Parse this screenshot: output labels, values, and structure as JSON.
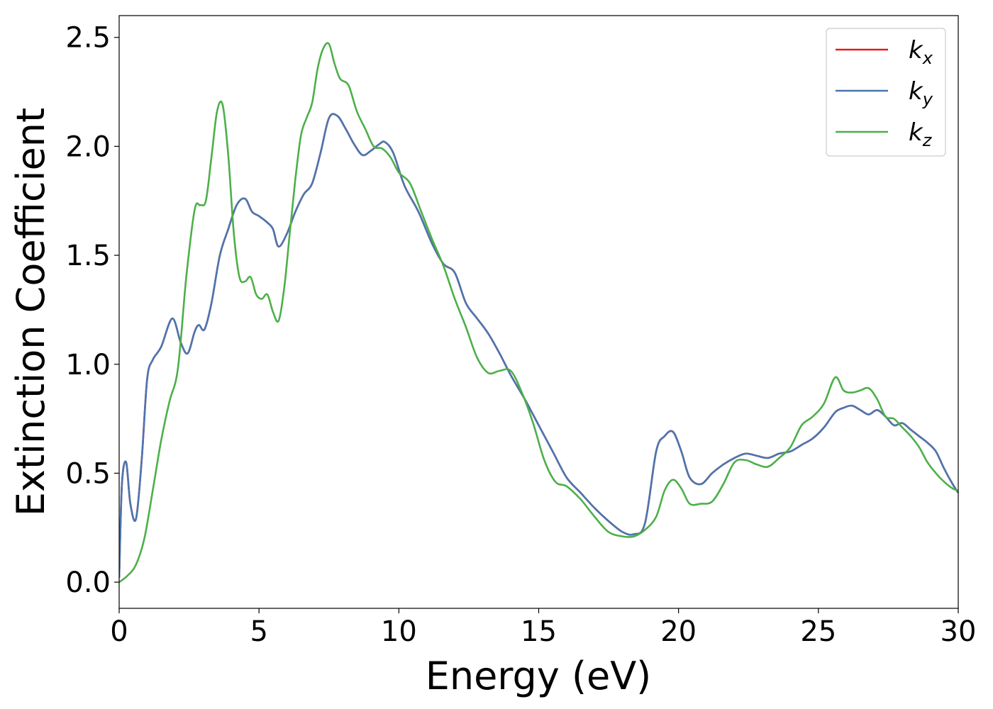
{
  "chart_data": {
    "type": "line",
    "title": "",
    "xlabel": "Energy (eV)",
    "ylabel": "Extinction Coefficient",
    "xlim": [
      0,
      30
    ],
    "ylim": [
      -0.12,
      2.6
    ],
    "xticks": [
      0,
      5,
      10,
      15,
      20,
      25,
      30
    ],
    "xtick_labels": [
      "0",
      "5",
      "10",
      "15",
      "20",
      "25",
      "30"
    ],
    "yticks": [
      0.0,
      0.5,
      1.0,
      1.5,
      2.0,
      2.5
    ],
    "ytick_labels": [
      "0.0",
      "0.5",
      "1.0",
      "1.5",
      "2.0",
      "2.5"
    ],
    "grid": false,
    "legend_position": "top-right",
    "series": [
      {
        "name": "k_x",
        "legend_base": "k",
        "legend_sub": "x",
        "color": "#e41a1c",
        "x": [
          0,
          0.1,
          0.25,
          0.4,
          0.6,
          0.8,
          1.0,
          1.2,
          1.5,
          1.9,
          2.2,
          2.45,
          2.7,
          2.85,
          3.05,
          3.3,
          3.6,
          3.9,
          4.2,
          4.5,
          4.75,
          5.0,
          5.3,
          5.5,
          5.7,
          6.0,
          6.3,
          6.6,
          6.9,
          7.2,
          7.5,
          7.8,
          8.1,
          8.4,
          8.7,
          9.0,
          9.3,
          9.5,
          9.8,
          10.2,
          10.7,
          11.2,
          11.6,
          12.0,
          12.4,
          12.8,
          13.2,
          13.6,
          14.0,
          14.5,
          15.0,
          15.5,
          16.0,
          16.5,
          17.0,
          17.5,
          18.0,
          18.4,
          18.8,
          19.2,
          19.5,
          19.8,
          20.1,
          20.4,
          20.8,
          21.2,
          21.6,
          22.0,
          22.4,
          22.8,
          23.2,
          23.6,
          24.0,
          24.4,
          24.8,
          25.2,
          25.6,
          25.9,
          26.2,
          26.5,
          26.8,
          27.1,
          27.4,
          27.7,
          28.0,
          28.3,
          28.6,
          28.9,
          29.2,
          29.5,
          29.8,
          30.0
        ],
        "y": [
          0.02,
          0.45,
          0.55,
          0.36,
          0.29,
          0.55,
          0.93,
          1.02,
          1.08,
          1.21,
          1.1,
          1.05,
          1.15,
          1.18,
          1.16,
          1.28,
          1.5,
          1.62,
          1.73,
          1.76,
          1.7,
          1.68,
          1.65,
          1.62,
          1.54,
          1.6,
          1.7,
          1.78,
          1.83,
          1.97,
          2.13,
          2.14,
          2.08,
          2.01,
          1.96,
          1.98,
          2.01,
          2.02,
          1.97,
          1.82,
          1.7,
          1.55,
          1.46,
          1.42,
          1.28,
          1.21,
          1.14,
          1.05,
          0.95,
          0.84,
          0.72,
          0.6,
          0.48,
          0.41,
          0.34,
          0.28,
          0.23,
          0.22,
          0.27,
          0.6,
          0.67,
          0.69,
          0.6,
          0.48,
          0.45,
          0.5,
          0.54,
          0.57,
          0.59,
          0.58,
          0.57,
          0.59,
          0.6,
          0.63,
          0.66,
          0.71,
          0.78,
          0.8,
          0.81,
          0.79,
          0.77,
          0.79,
          0.76,
          0.72,
          0.73,
          0.7,
          0.67,
          0.64,
          0.6,
          0.52,
          0.45,
          0.41
        ]
      },
      {
        "name": "k_y",
        "legend_base": "k",
        "legend_sub": "y",
        "color": "#4a76b0",
        "x": [
          0,
          0.1,
          0.25,
          0.4,
          0.6,
          0.8,
          1.0,
          1.2,
          1.5,
          1.9,
          2.2,
          2.45,
          2.7,
          2.85,
          3.05,
          3.3,
          3.6,
          3.9,
          4.2,
          4.5,
          4.75,
          5.0,
          5.3,
          5.5,
          5.7,
          6.0,
          6.3,
          6.6,
          6.9,
          7.2,
          7.5,
          7.8,
          8.1,
          8.4,
          8.7,
          9.0,
          9.3,
          9.5,
          9.8,
          10.2,
          10.7,
          11.2,
          11.6,
          12.0,
          12.4,
          12.8,
          13.2,
          13.6,
          14.0,
          14.5,
          15.0,
          15.5,
          16.0,
          16.5,
          17.0,
          17.5,
          18.0,
          18.4,
          18.8,
          19.2,
          19.5,
          19.8,
          20.1,
          20.4,
          20.8,
          21.2,
          21.6,
          22.0,
          22.4,
          22.8,
          23.2,
          23.6,
          24.0,
          24.4,
          24.8,
          25.2,
          25.6,
          25.9,
          26.2,
          26.5,
          26.8,
          27.1,
          27.4,
          27.7,
          28.0,
          28.3,
          28.6,
          28.9,
          29.2,
          29.5,
          29.8,
          30.0
        ],
        "y": [
          0.02,
          0.45,
          0.55,
          0.36,
          0.29,
          0.55,
          0.93,
          1.02,
          1.08,
          1.21,
          1.1,
          1.05,
          1.15,
          1.18,
          1.16,
          1.28,
          1.5,
          1.62,
          1.73,
          1.76,
          1.7,
          1.68,
          1.65,
          1.62,
          1.54,
          1.6,
          1.7,
          1.78,
          1.83,
          1.97,
          2.13,
          2.14,
          2.08,
          2.01,
          1.96,
          1.98,
          2.01,
          2.02,
          1.97,
          1.82,
          1.7,
          1.55,
          1.46,
          1.42,
          1.28,
          1.21,
          1.14,
          1.05,
          0.95,
          0.84,
          0.72,
          0.6,
          0.48,
          0.41,
          0.34,
          0.28,
          0.23,
          0.22,
          0.27,
          0.6,
          0.67,
          0.69,
          0.6,
          0.48,
          0.45,
          0.5,
          0.54,
          0.57,
          0.59,
          0.58,
          0.57,
          0.59,
          0.6,
          0.63,
          0.66,
          0.71,
          0.78,
          0.8,
          0.81,
          0.79,
          0.77,
          0.79,
          0.76,
          0.72,
          0.73,
          0.7,
          0.67,
          0.64,
          0.6,
          0.52,
          0.45,
          0.41
        ]
      },
      {
        "name": "k_z",
        "legend_base": "k",
        "legend_sub": "z",
        "color": "#4daf4a",
        "x": [
          0,
          0.3,
          0.6,
          0.9,
          1.2,
          1.5,
          1.8,
          2.1,
          2.4,
          2.7,
          2.9,
          3.1,
          3.3,
          3.5,
          3.7,
          3.9,
          4.1,
          4.3,
          4.5,
          4.7,
          4.9,
          5.1,
          5.3,
          5.5,
          5.7,
          5.9,
          6.1,
          6.3,
          6.5,
          6.7,
          6.9,
          7.1,
          7.3,
          7.5,
          7.7,
          7.9,
          8.2,
          8.5,
          8.8,
          9.1,
          9.4,
          9.7,
          10.0,
          10.4,
          10.8,
          11.2,
          11.6,
          12.0,
          12.4,
          12.8,
          13.2,
          13.6,
          14.0,
          14.4,
          14.8,
          15.2,
          15.6,
          16.0,
          16.5,
          17.0,
          17.5,
          18.0,
          18.4,
          18.8,
          19.2,
          19.5,
          19.8,
          20.1,
          20.4,
          20.8,
          21.2,
          21.6,
          22.0,
          22.4,
          22.8,
          23.2,
          23.6,
          24.0,
          24.4,
          24.8,
          25.2,
          25.6,
          25.9,
          26.2,
          26.5,
          26.8,
          27.1,
          27.4,
          27.7,
          28.0,
          28.3,
          28.6,
          28.9,
          29.2,
          29.5,
          29.8,
          30.0
        ],
        "y": [
          0.0,
          0.03,
          0.08,
          0.2,
          0.42,
          0.65,
          0.83,
          0.98,
          1.4,
          1.71,
          1.73,
          1.75,
          1.95,
          2.16,
          2.19,
          1.96,
          1.6,
          1.4,
          1.38,
          1.4,
          1.32,
          1.3,
          1.32,
          1.24,
          1.2,
          1.35,
          1.6,
          1.85,
          2.05,
          2.13,
          2.2,
          2.36,
          2.45,
          2.47,
          2.38,
          2.31,
          2.28,
          2.16,
          2.08,
          2.0,
          1.99,
          1.95,
          1.88,
          1.83,
          1.7,
          1.57,
          1.45,
          1.3,
          1.17,
          1.03,
          0.96,
          0.97,
          0.97,
          0.87,
          0.73,
          0.56,
          0.46,
          0.44,
          0.38,
          0.3,
          0.23,
          0.21,
          0.21,
          0.24,
          0.3,
          0.42,
          0.47,
          0.43,
          0.36,
          0.36,
          0.37,
          0.45,
          0.55,
          0.56,
          0.54,
          0.53,
          0.57,
          0.62,
          0.72,
          0.76,
          0.82,
          0.94,
          0.88,
          0.87,
          0.88,
          0.89,
          0.84,
          0.76,
          0.75,
          0.71,
          0.67,
          0.62,
          0.55,
          0.5,
          0.46,
          0.43,
          0.42
        ]
      }
    ]
  }
}
